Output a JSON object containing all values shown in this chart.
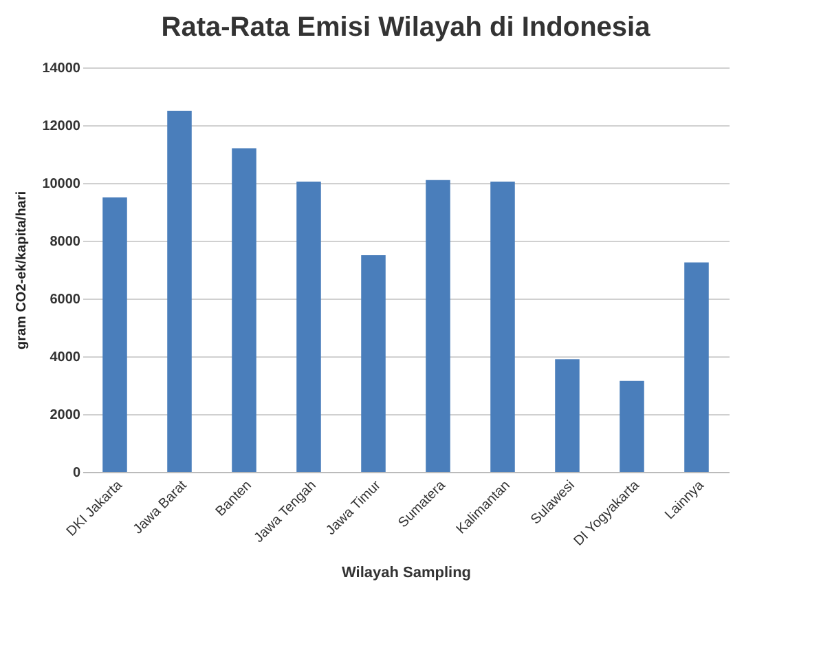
{
  "chart_data": {
    "type": "bar",
    "title": "Rata-Rata Emisi Wilayah di Indonesia",
    "xlabel": "Wilayah Sampling",
    "ylabel": "gram CO2-ek/kapita/hari",
    "categories": [
      "DKI Jakarta",
      "Jawa Barat",
      "Banten",
      "Jawa Tengah",
      "Jawa Timur",
      "Sumatera",
      "Kalimantan",
      "Sulawesi",
      "DI Yogyakarta",
      "Lainnya"
    ],
    "values": [
      9500,
      12500,
      11200,
      10050,
      7500,
      10100,
      10050,
      3900,
      3150,
      7250
    ],
    "color": "#4a7ebb",
    "ylim": [
      0,
      14000
    ],
    "yticks": [
      0,
      2000,
      4000,
      6000,
      8000,
      10000,
      12000,
      14000
    ],
    "grid": "y"
  }
}
